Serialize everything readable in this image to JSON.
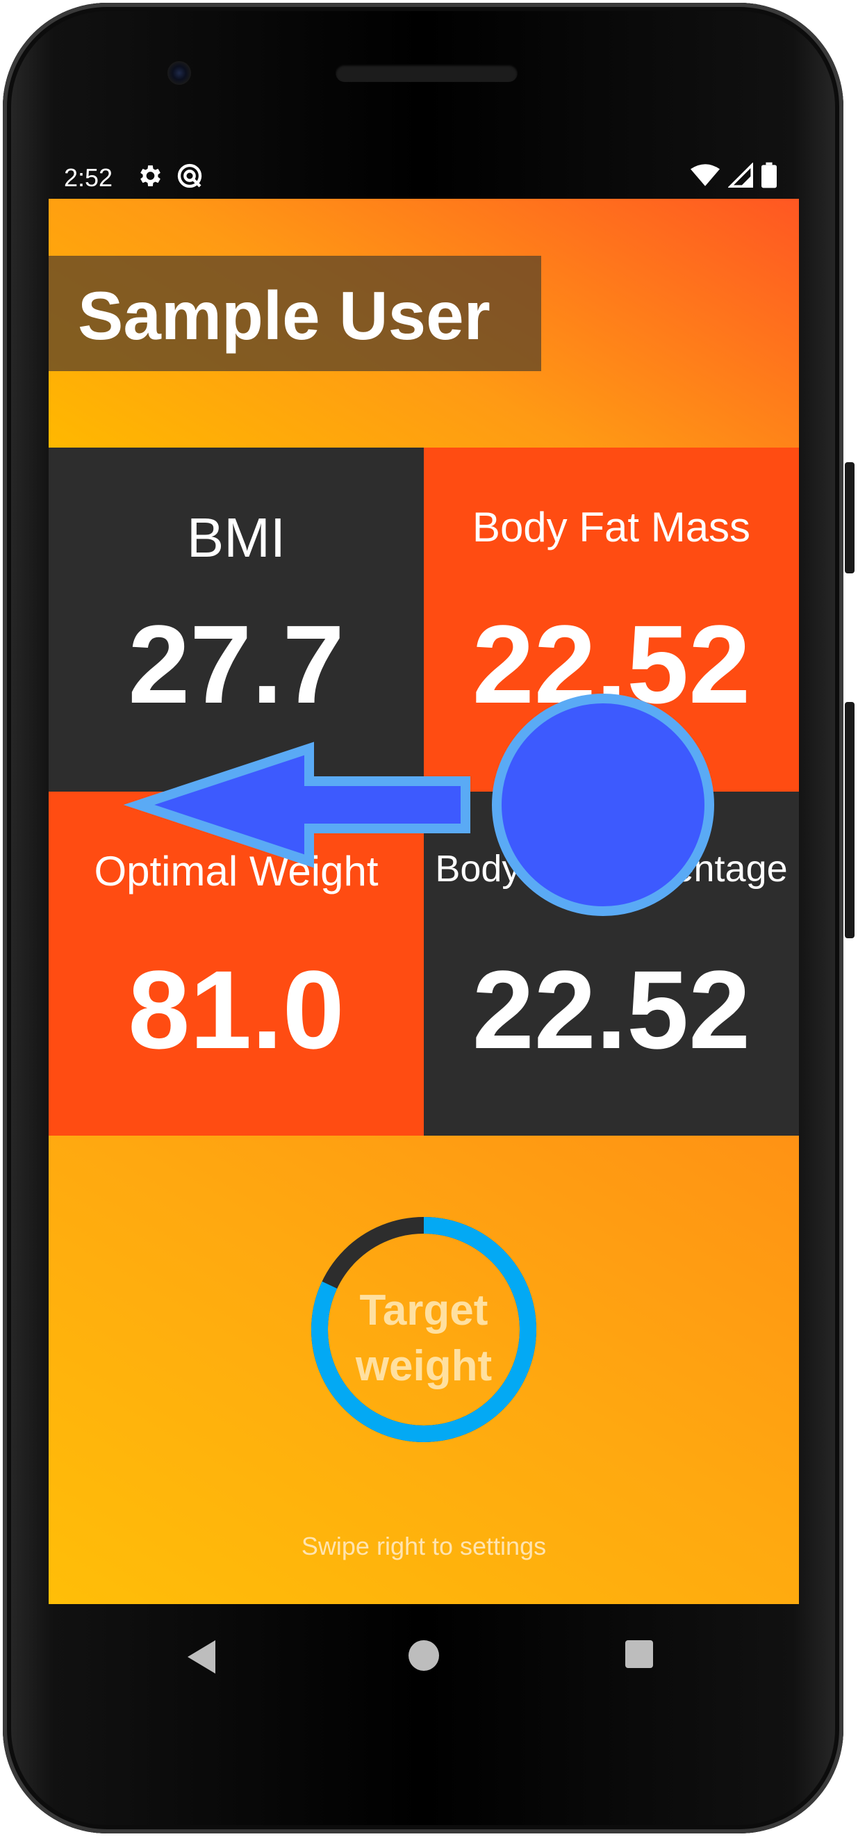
{
  "status_bar": {
    "time": "2:52",
    "left_icons": [
      "gear-icon",
      "sync-icon"
    ],
    "right_icons": [
      "wifi-icon",
      "signal-icon",
      "battery-icon"
    ]
  },
  "header": {
    "user_name": "Sample User"
  },
  "tiles": {
    "bmi": {
      "label": "BMI",
      "value": "27.7"
    },
    "body_fat_mass": {
      "label": "Body Fat Mass",
      "value": "22.52"
    },
    "optimal_weight": {
      "label": "Optimal Weight",
      "value": "81.0"
    },
    "body_fat_percentage": {
      "label": "Body Fat Percentage",
      "value": "22.52"
    }
  },
  "target": {
    "label_line1": "Target",
    "label_line2": "weight",
    "progress_fraction": 0.82,
    "progress_color": "#03a9f4",
    "track_color": "#2d2d2d"
  },
  "hint": "Swipe right to settings",
  "nav": [
    "back-icon",
    "home-icon",
    "recents-icon"
  ],
  "colors": {
    "accent_orange": "#ff4c12",
    "dark_tile": "#2d2d2d",
    "gesture_blue": "#3d5afe",
    "gesture_outline": "#5aaaf5"
  }
}
